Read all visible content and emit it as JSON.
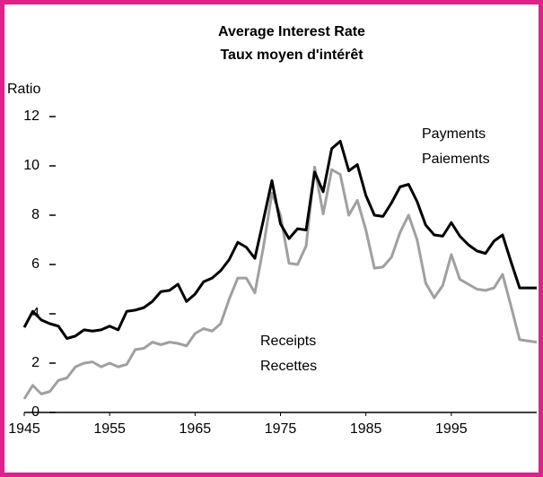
{
  "chart_data": {
    "type": "line",
    "title": "Average Interest Rate",
    "subtitle": "Taux moyen d'intérêt",
    "y_label": "Ratio",
    "annotations": [
      "Payments",
      "Paiements",
      "Receipts",
      "Recettes"
    ],
    "x": [
      1945,
      1946,
      1947,
      1948,
      1949,
      1950,
      1951,
      1952,
      1953,
      1954,
      1955,
      1956,
      1957,
      1958,
      1959,
      1960,
      1961,
      1962,
      1963,
      1964,
      1965,
      1966,
      1967,
      1968,
      1969,
      1970,
      1971,
      1972,
      1973,
      1974,
      1975,
      1976,
      1977,
      1978,
      1979,
      1980,
      1981,
      1982,
      1983,
      1984,
      1985,
      1986,
      1987,
      1988,
      1989,
      1990,
      1991,
      1992,
      1993,
      1994,
      1995,
      1996,
      1997,
      1998,
      1999,
      2000,
      2001,
      2002,
      2003,
      2004,
      2005
    ],
    "series": [
      {
        "name": "Payments",
        "color": "#000000",
        "values": [
          3.45,
          4.1,
          3.75,
          3.6,
          3.5,
          3.0,
          3.1,
          3.35,
          3.3,
          3.35,
          3.5,
          3.35,
          4.1,
          4.15,
          4.25,
          4.5,
          4.9,
          4.95,
          5.2,
          4.5,
          4.8,
          5.3,
          5.45,
          5.75,
          6.2,
          6.9,
          6.7,
          6.25,
          7.8,
          9.4,
          7.65,
          7.05,
          7.45,
          7.4,
          9.75,
          8.95,
          10.7,
          11.0,
          9.8,
          10.05,
          8.8,
          8.0,
          7.95,
          8.5,
          9.15,
          9.25,
          8.55,
          7.6,
          7.2,
          7.15,
          7.7,
          7.15,
          6.8,
          6.55,
          6.45,
          6.95,
          7.2,
          6.1,
          5.05,
          5.05,
          5.05
        ]
      },
      {
        "name": "Receipts",
        "color": "#a0a0a0",
        "values": [
          0.55,
          1.1,
          0.75,
          0.85,
          1.3,
          1.4,
          1.85,
          2.0,
          2.05,
          1.85,
          2.0,
          1.85,
          1.95,
          2.55,
          2.6,
          2.85,
          2.75,
          2.85,
          2.8,
          2.7,
          3.2,
          3.4,
          3.3,
          3.6,
          4.6,
          5.45,
          5.45,
          4.85,
          6.7,
          8.9,
          8.0,
          6.05,
          6.0,
          6.75,
          9.95,
          8.05,
          9.85,
          9.65,
          8.0,
          8.6,
          7.4,
          5.85,
          5.9,
          6.3,
          7.3,
          8.0,
          7.0,
          5.25,
          4.65,
          5.15,
          6.4,
          5.4,
          5.2,
          5.0,
          4.95,
          5.05,
          5.6,
          4.3,
          2.95,
          2.9,
          2.85
        ]
      }
    ],
    "xlim": [
      1945,
      2005
    ],
    "xticks": [
      1945,
      1955,
      1965,
      1975,
      1985,
      1995
    ],
    "ylim": [
      0,
      12
    ],
    "yticks": [
      0,
      2,
      4,
      6,
      8,
      10,
      12
    ],
    "border_color": "#e0218a"
  }
}
